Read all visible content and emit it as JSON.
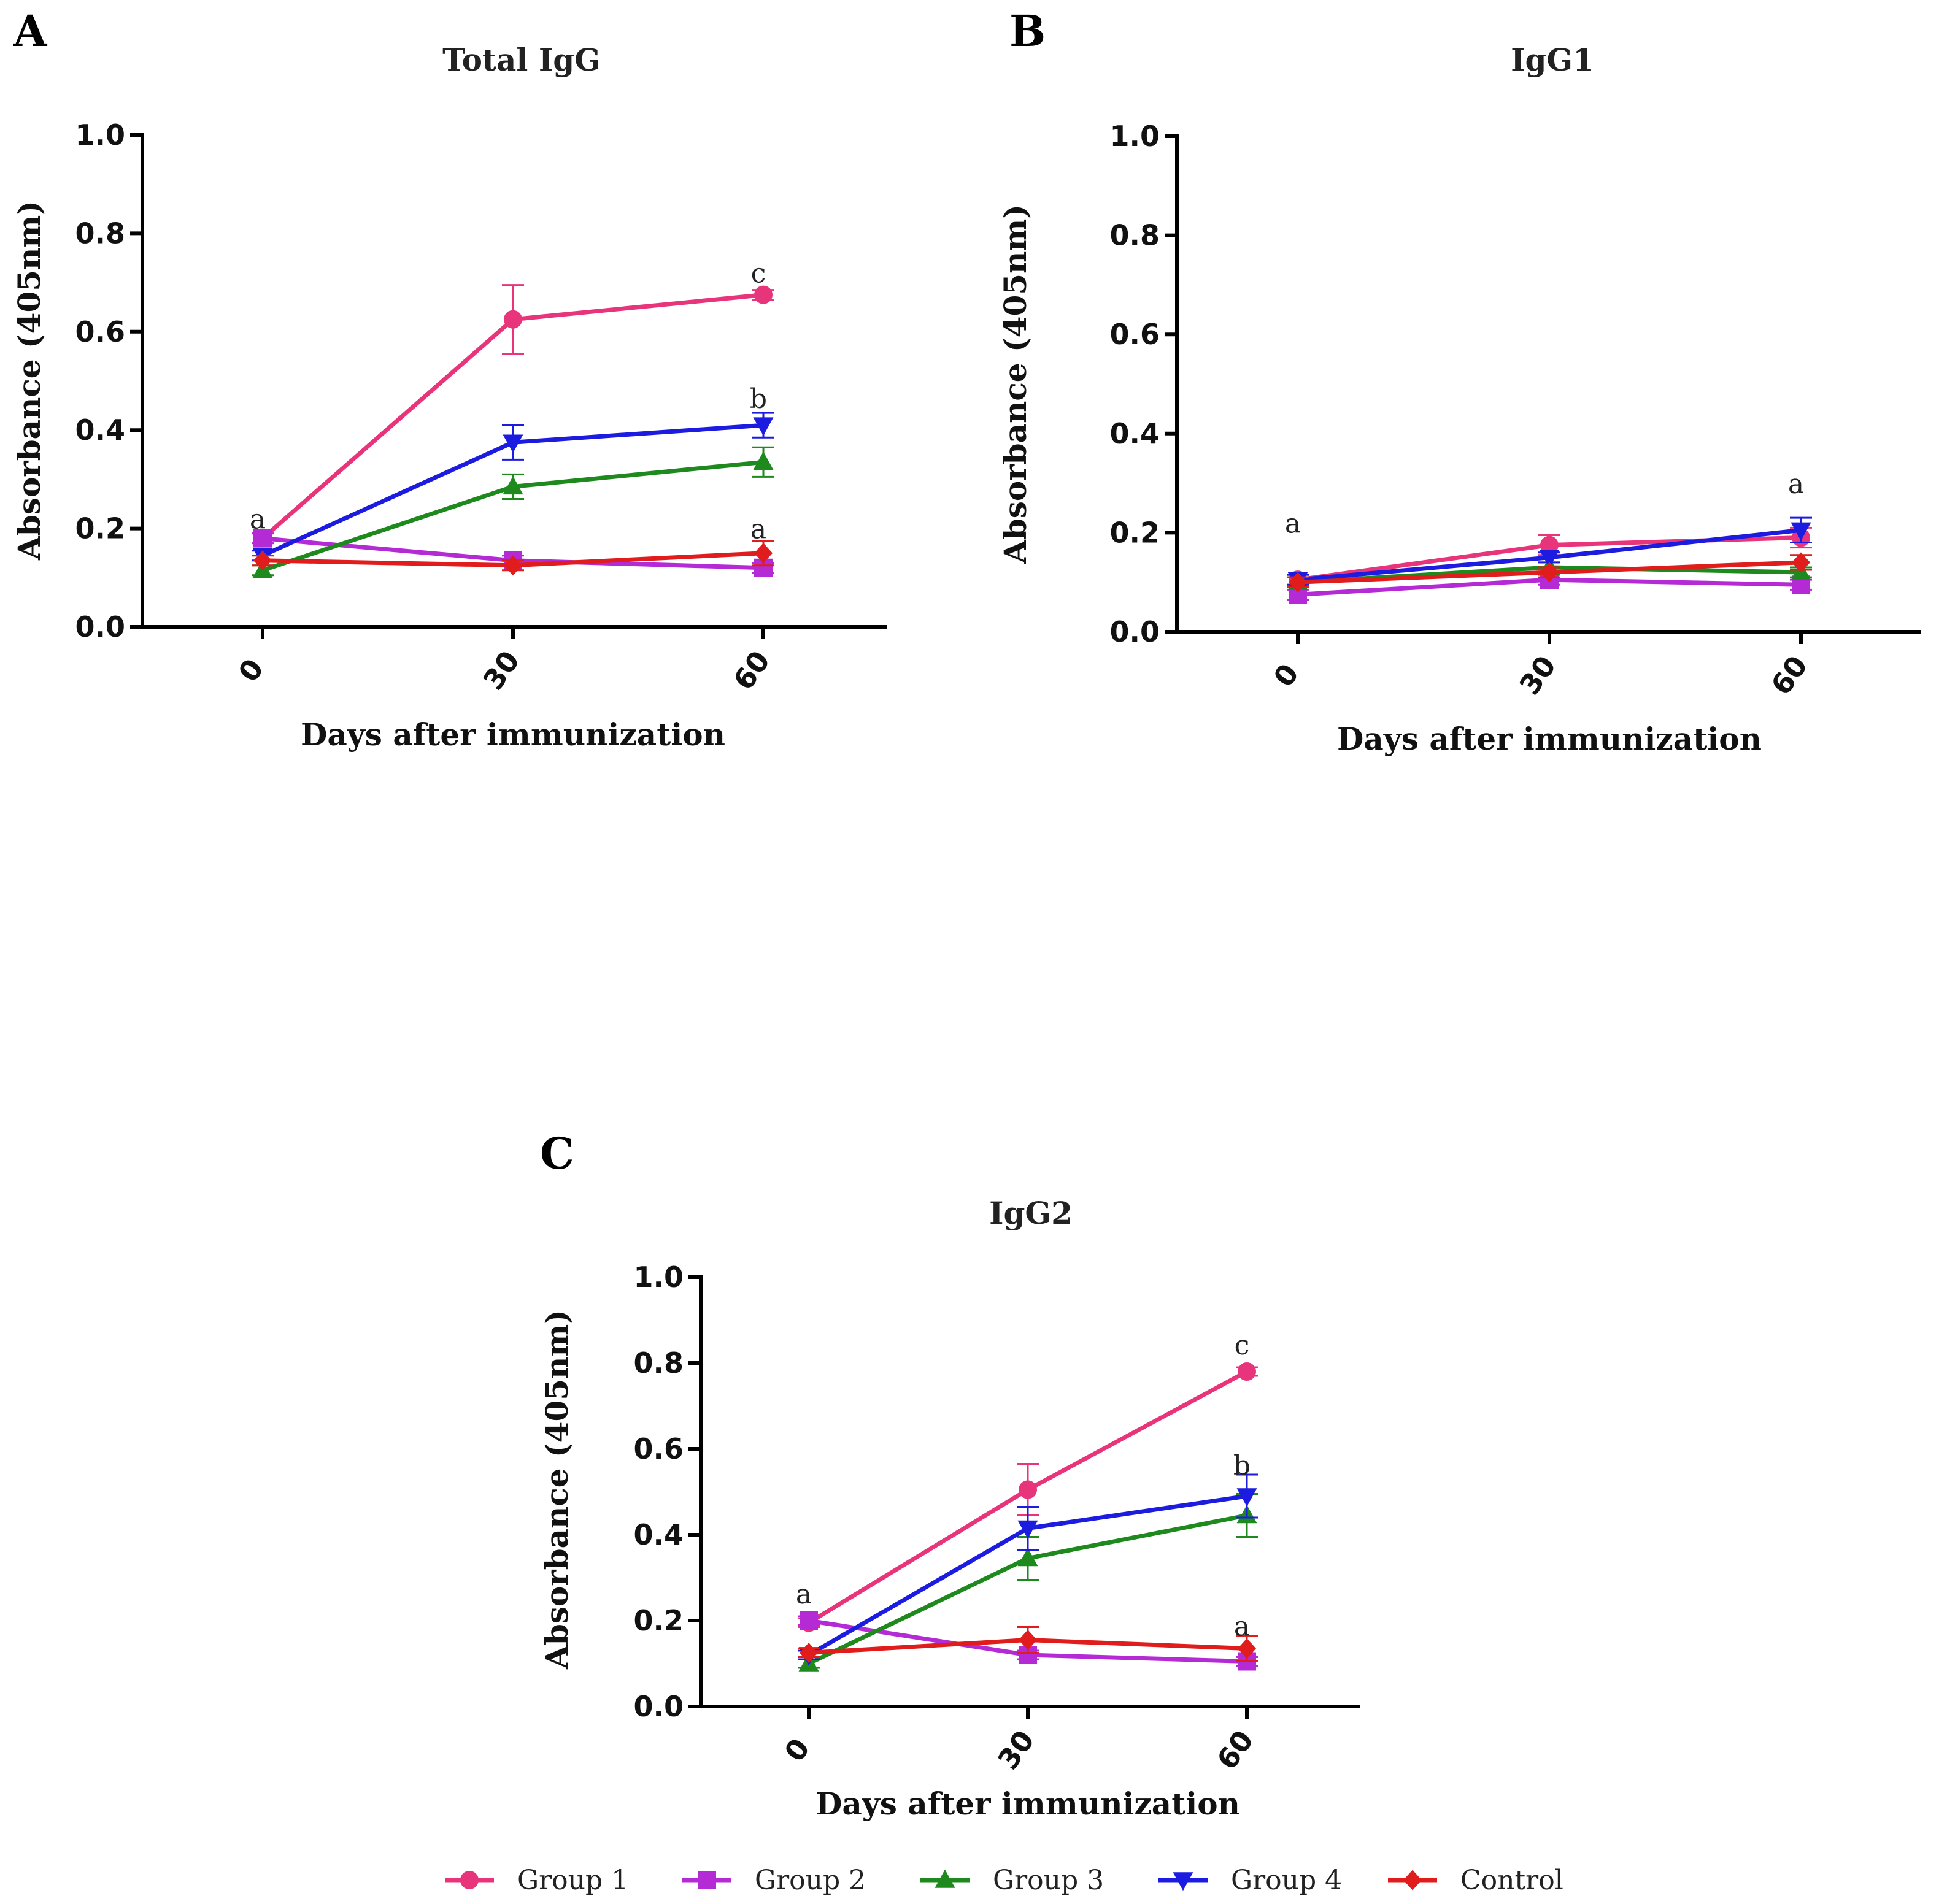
{
  "figure": {
    "panels": [
      {
        "letter": "A",
        "title": "Total IgG"
      },
      {
        "letter": "B",
        "title": "IgG1"
      },
      {
        "letter": "C",
        "title": "IgG2"
      }
    ],
    "legend": [
      {
        "name": "Group 1",
        "color": "#e8347a",
        "marker": "circle"
      },
      {
        "name": "Group 2",
        "color": "#b42bd6",
        "marker": "square"
      },
      {
        "name": "Group 3",
        "color": "#1e8a1e",
        "marker": "triangle-up"
      },
      {
        "name": "Group 4",
        "color": "#1c1ce0",
        "marker": "triangle-down"
      },
      {
        "name": "Control",
        "color": "#e01c1c",
        "marker": "diamond"
      }
    ]
  },
  "chart_data": [
    {
      "type": "line",
      "title": "Total IgG",
      "xlabel": "Days after immunization",
      "ylabel": "Absorbance  (405nm)",
      "x": [
        "0",
        "30",
        "60"
      ],
      "y_ticks": [
        "0.0",
        "0.2",
        "0.4",
        "0.6",
        "0.8",
        "1.0"
      ],
      "ylim": [
        0,
        1
      ],
      "series": [
        {
          "name": "Group 1",
          "values": [
            0.18,
            0.625,
            0.675
          ],
          "errors": [
            0.01,
            0.07,
            0.01
          ]
        },
        {
          "name": "Group 2",
          "values": [
            0.18,
            0.135,
            0.12
          ],
          "errors": [
            0.01,
            0.01,
            0.01
          ]
        },
        {
          "name": "Group 3",
          "values": [
            0.115,
            0.285,
            0.335
          ],
          "errors": [
            0.01,
            0.025,
            0.03
          ]
        },
        {
          "name": "Group 4",
          "values": [
            0.145,
            0.375,
            0.41
          ],
          "errors": [
            0.01,
            0.035,
            0.025
          ]
        },
        {
          "name": "Control",
          "values": [
            0.135,
            0.125,
            0.15
          ],
          "errors": [
            0.01,
            0.01,
            0.025
          ]
        }
      ],
      "annotations": [
        {
          "x": "0",
          "y": 0.2,
          "text": "a"
        },
        {
          "x": "60",
          "y": 0.7,
          "text": "c"
        },
        {
          "x": "60",
          "y": 0.445,
          "text": "b"
        },
        {
          "x": "60",
          "y": 0.18,
          "text": "a"
        }
      ]
    },
    {
      "type": "line",
      "title": "IgG1",
      "xlabel": "Days after immunization",
      "ylabel": "Absorbance  (405nm)",
      "x": [
        "0",
        "30",
        "60"
      ],
      "y_ticks": [
        "0.0",
        "0.2",
        "0.4",
        "0.6",
        "0.8",
        "1.0"
      ],
      "ylim": [
        0,
        1
      ],
      "series": [
        {
          "name": "Group 1",
          "values": [
            0.105,
            0.175,
            0.19
          ],
          "errors": [
            0.01,
            0.02,
            0.02
          ]
        },
        {
          "name": "Group 2",
          "values": [
            0.075,
            0.105,
            0.095
          ],
          "errors": [
            0.01,
            0.01,
            0.01
          ]
        },
        {
          "name": "Group 3",
          "values": [
            0.1,
            0.13,
            0.12
          ],
          "errors": [
            0.01,
            0.01,
            0.01
          ]
        },
        {
          "name": "Group 4",
          "values": [
            0.105,
            0.15,
            0.205
          ],
          "errors": [
            0.01,
            0.01,
            0.025
          ]
        },
        {
          "name": "Control",
          "values": [
            0.1,
            0.12,
            0.14
          ],
          "errors": [
            0.01,
            0.01,
            0.015
          ]
        }
      ],
      "annotations": [
        {
          "x": "0",
          "y": 0.2,
          "text": "a"
        },
        {
          "x": "60",
          "y": 0.28,
          "text": "a"
        }
      ]
    },
    {
      "type": "line",
      "title": "IgG2",
      "xlabel": "Days after immunization",
      "ylabel": "Absorbance  (405nm)",
      "x": [
        "0",
        "30",
        "60"
      ],
      "y_ticks": [
        "0.0",
        "0.2",
        "0.4",
        "0.6",
        "0.8",
        "1.0"
      ],
      "ylim": [
        0,
        1
      ],
      "series": [
        {
          "name": "Group 1",
          "values": [
            0.195,
            0.505,
            0.78
          ],
          "errors": [
            0.01,
            0.06,
            0.01
          ]
        },
        {
          "name": "Group 2",
          "values": [
            0.2,
            0.12,
            0.105
          ],
          "errors": [
            0.01,
            0.01,
            0.01
          ]
        },
        {
          "name": "Group 3",
          "values": [
            0.1,
            0.345,
            0.445
          ],
          "errors": [
            0.01,
            0.05,
            0.05
          ]
        },
        {
          "name": "Group 4",
          "values": [
            0.12,
            0.415,
            0.49
          ],
          "errors": [
            0.01,
            0.05,
            0.05
          ]
        },
        {
          "name": "Control",
          "values": [
            0.125,
            0.155,
            0.135
          ],
          "errors": [
            0.01,
            0.03,
            0.03
          ]
        }
      ],
      "annotations": [
        {
          "x": "0",
          "y": 0.24,
          "text": "a"
        },
        {
          "x": "60",
          "y": 0.82,
          "text": "c"
        },
        {
          "x": "60",
          "y": 0.54,
          "text": "b"
        },
        {
          "x": "60",
          "y": 0.165,
          "text": "a"
        }
      ]
    }
  ]
}
